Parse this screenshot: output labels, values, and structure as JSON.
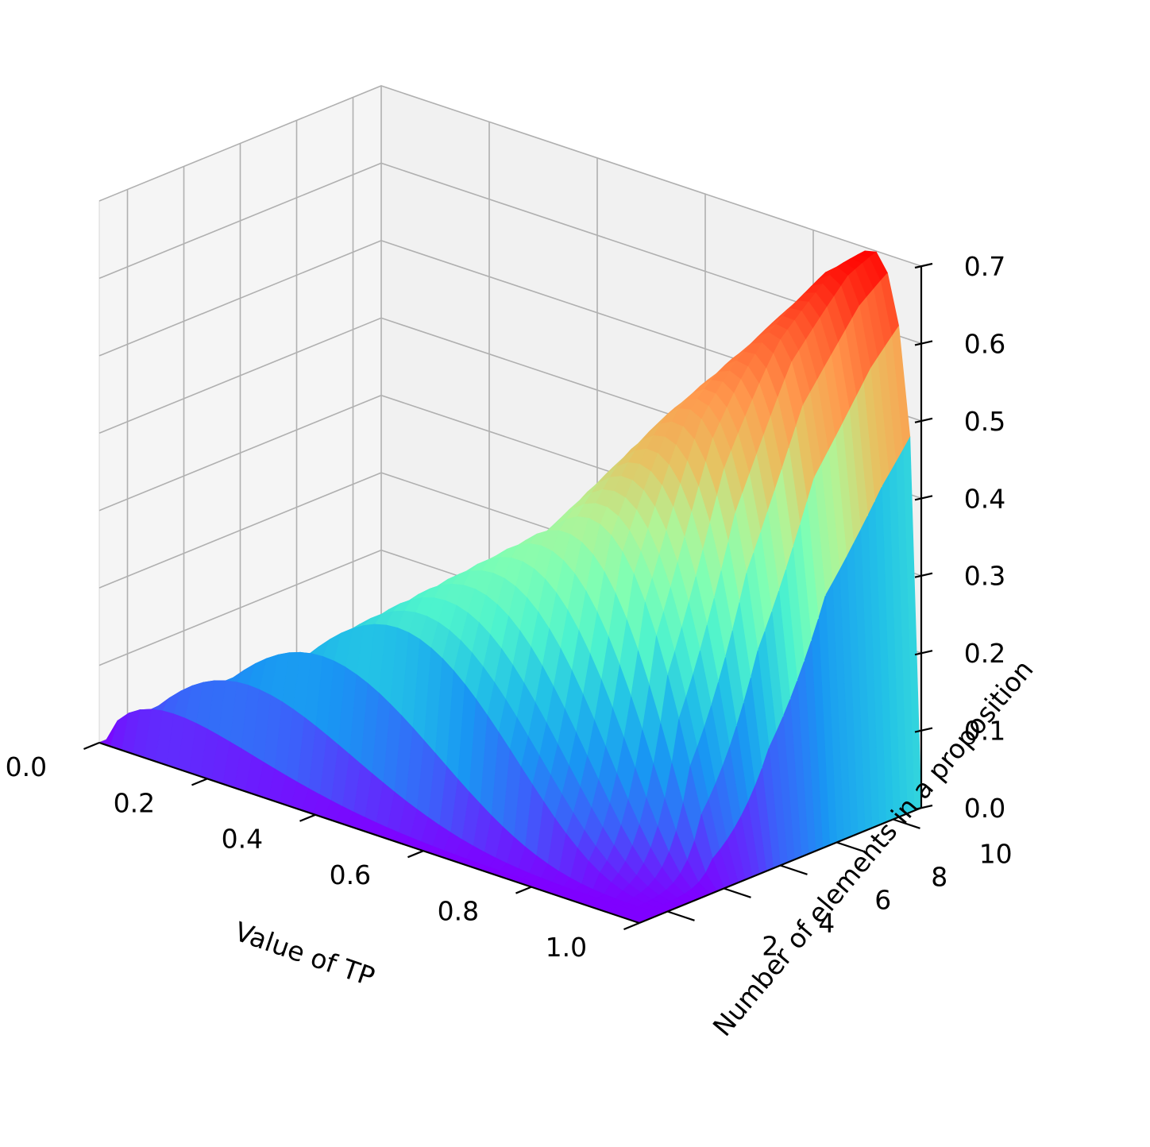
{
  "chart_data": {
    "type": "surface3d",
    "title": "",
    "xlabel": "Value of TP",
    "ylabel": "Number of elements in a proposition",
    "zlabel": "",
    "x_ticks": [
      "0.0",
      "0.2",
      "0.4",
      "0.6",
      "0.8",
      "1.0"
    ],
    "y_ticks": [
      "2",
      "4",
      "6",
      "8",
      "10"
    ],
    "z_ticks": [
      "0.0",
      "0.1",
      "0.2",
      "0.3",
      "0.4",
      "0.5",
      "0.6",
      "0.7"
    ],
    "x_range": [
      0,
      1
    ],
    "y_range": [
      1,
      11
    ],
    "z_range": [
      0,
      0.7
    ],
    "grid": true,
    "colormap": "rainbow",
    "colormap_stops": [
      "#7f00ff",
      "#3c60fa",
      "#1996f3",
      "#23c3e6",
      "#4df3ce",
      "#80feb3",
      "#b3f395",
      "#e6c362",
      "#ff9a4e",
      "#ff5e2f",
      "#ff0000"
    ],
    "surface_samples": [
      {
        "y": 1.0,
        "z_max": 0.0,
        "x_at_max": 0.0
      },
      {
        "y": 2.0,
        "z_max": 0.25,
        "x_at_max": 0.5
      },
      {
        "y": 4.0,
        "z_max": 0.42,
        "x_at_max": 0.75
      },
      {
        "y": 6.0,
        "z_max": 0.55,
        "x_at_max": 0.83
      },
      {
        "y": 8.0,
        "z_max": 0.63,
        "x_at_max": 0.88
      },
      {
        "y": 10.0,
        "z_max": 0.69,
        "x_at_max": 0.9
      },
      {
        "y": 11.0,
        "z_max": 0.7,
        "x_at_max": 0.91
      }
    ]
  }
}
